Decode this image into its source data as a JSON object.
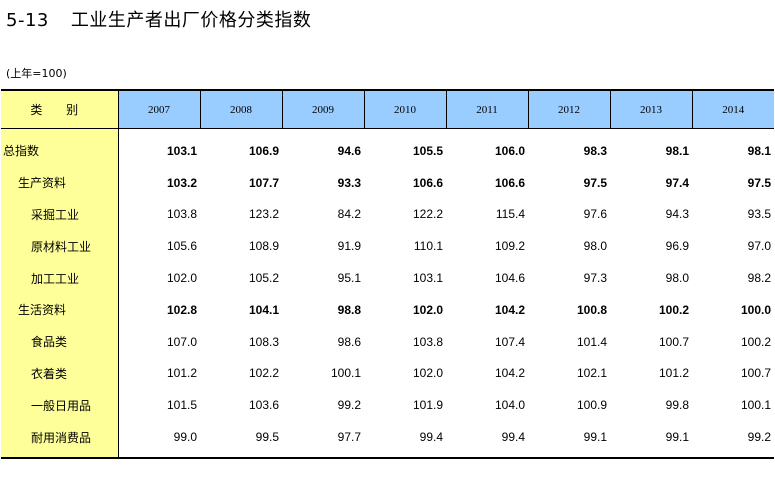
{
  "title": {
    "number": "5-13",
    "text": "工业生产者出厂价格分类指数"
  },
  "base_note": "(上年=100)",
  "table": {
    "category_header": "类 别",
    "years": [
      "2007",
      "2008",
      "2009",
      "2010",
      "2011",
      "2012",
      "2013",
      "2014"
    ],
    "rows": [
      {
        "label": "总指数",
        "level": 0,
        "bold": true,
        "values": [
          "103.1",
          "106.9",
          "94.6",
          "105.5",
          "106.0",
          "98.3",
          "98.1",
          "98.1"
        ]
      },
      {
        "label": "生产资料",
        "level": 1,
        "bold": true,
        "values": [
          "103.2",
          "107.7",
          "93.3",
          "106.6",
          "106.6",
          "97.5",
          "97.4",
          "97.5"
        ]
      },
      {
        "label": "采掘工业",
        "level": 2,
        "bold": false,
        "values": [
          "103.8",
          "123.2",
          "84.2",
          "122.2",
          "115.4",
          "97.6",
          "94.3",
          "93.5"
        ]
      },
      {
        "label": "原材料工业",
        "level": 2,
        "bold": false,
        "values": [
          "105.6",
          "108.9",
          "91.9",
          "110.1",
          "109.2",
          "98.0",
          "96.9",
          "97.0"
        ]
      },
      {
        "label": "加工工业",
        "level": 2,
        "bold": false,
        "values": [
          "102.0",
          "105.2",
          "95.1",
          "103.1",
          "104.6",
          "97.3",
          "98.0",
          "98.2"
        ]
      },
      {
        "label": "生活资料",
        "level": 1,
        "bold": true,
        "values": [
          "102.8",
          "104.1",
          "98.8",
          "102.0",
          "104.2",
          "100.8",
          "100.2",
          "100.0"
        ]
      },
      {
        "label": "食品类",
        "level": 2,
        "bold": false,
        "values": [
          "107.0",
          "108.3",
          "98.6",
          "103.8",
          "107.4",
          "101.4",
          "100.7",
          "100.2"
        ]
      },
      {
        "label": "衣着类",
        "level": 2,
        "bold": false,
        "values": [
          "101.2",
          "102.2",
          "100.1",
          "102.0",
          "104.2",
          "102.1",
          "101.2",
          "100.7"
        ]
      },
      {
        "label": "一般日用品",
        "level": 2,
        "bold": false,
        "values": [
          "101.5",
          "103.6",
          "99.2",
          "101.9",
          "104.0",
          "100.9",
          "99.8",
          "100.1"
        ]
      },
      {
        "label": "耐用消费品",
        "level": 2,
        "bold": false,
        "values": [
          "99.0",
          "99.5",
          "97.7",
          "99.4",
          "99.4",
          "99.1",
          "99.1",
          "99.2"
        ]
      }
    ]
  }
}
